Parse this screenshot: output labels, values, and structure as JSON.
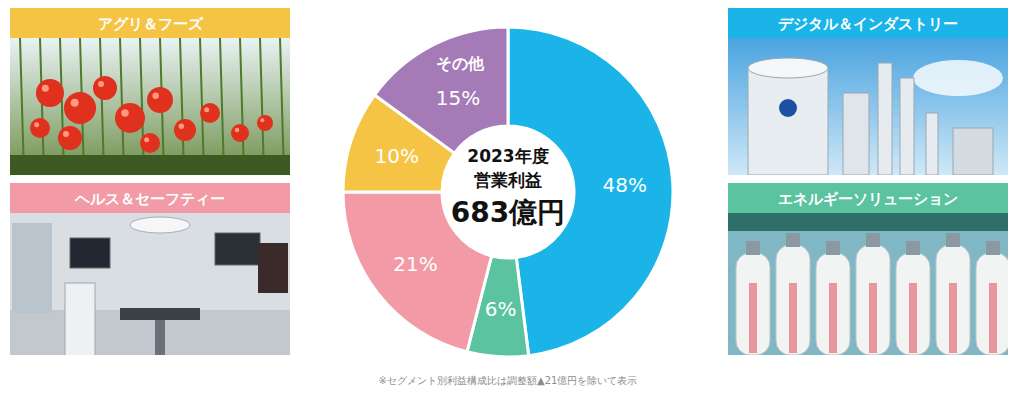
{
  "chart_data": {
    "type": "pie",
    "title": "2023年度",
    "subtitle": "営業利益",
    "categories": [
      "デジタル＆インダストリー",
      "エネルギーソリューション",
      "ヘルス＆セーフティー",
      "アグリ＆フーズ",
      "その他"
    ],
    "values": [
      48,
      6,
      21,
      10,
      15
    ],
    "value_labels": [
      "48%",
      "6%",
      "21%",
      "10%",
      "15%"
    ],
    "colors": [
      "#1ab4e8",
      "#5bc3a0",
      "#f29ba6",
      "#f6c445",
      "#a47bb7"
    ],
    "data_labels": true,
    "annotations": [
      {
        "text": "683億円"
      },
      {
        "text": "※セグメント別利益構成比は調整額▲21億円を除いて表示"
      }
    ]
  }
}
